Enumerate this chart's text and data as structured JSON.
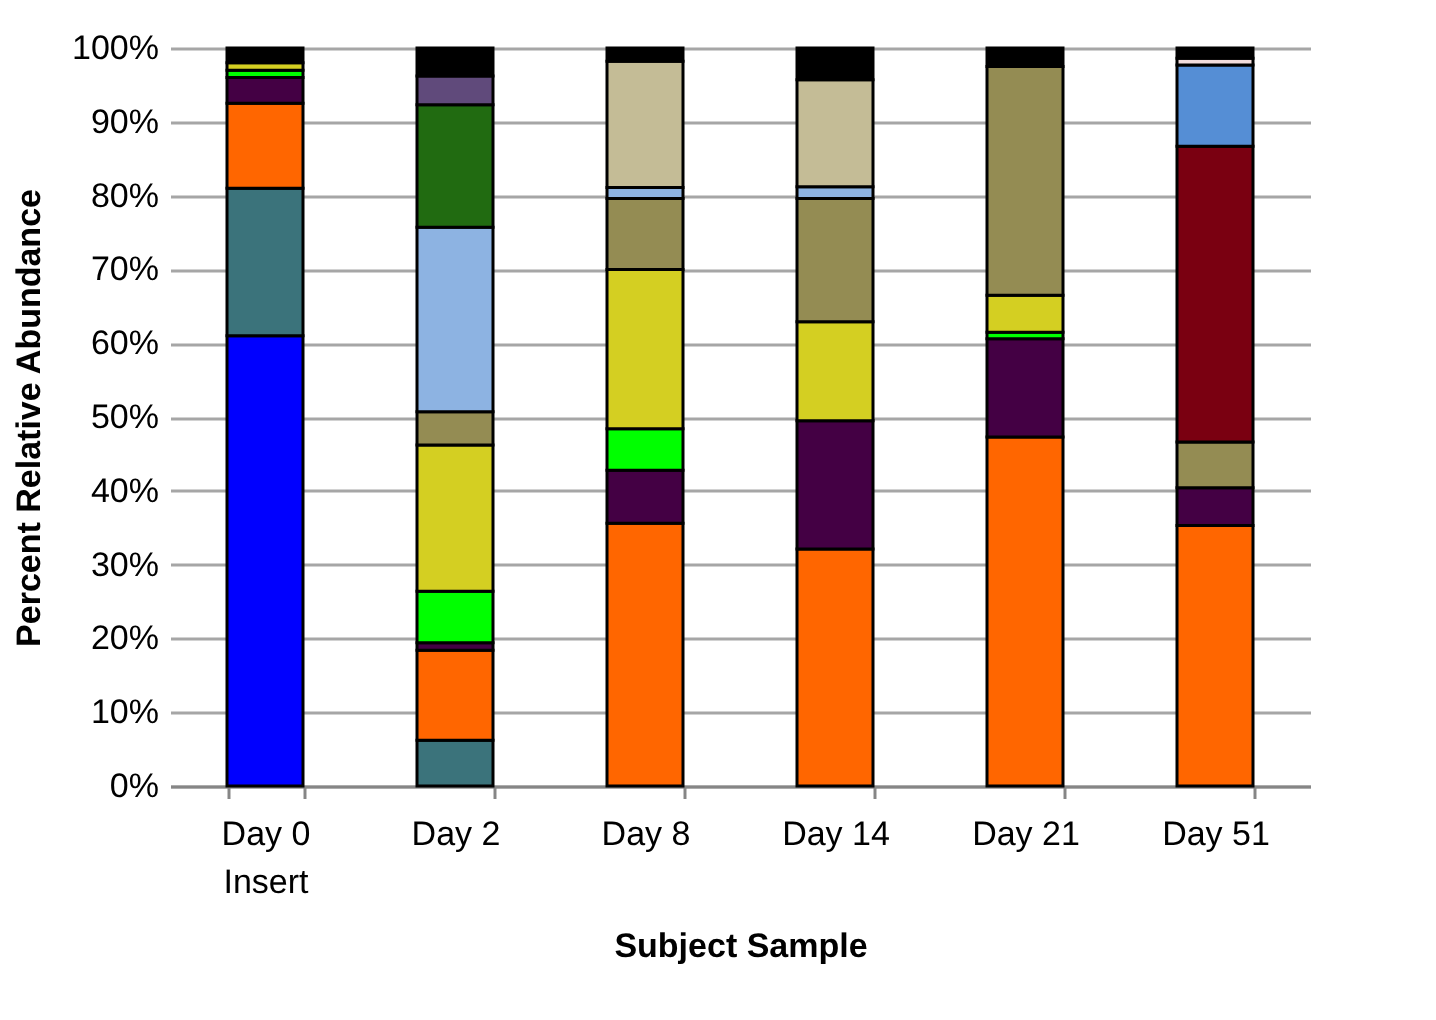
{
  "chart_data": {
    "type": "bar",
    "stacked": true,
    "xlabel": "Subject Sample",
    "ylabel": "Percent Relative Abundance",
    "categories": [
      "Day 0\nInsert",
      "Day 2",
      "Day 8",
      "Day 14",
      "Day 21",
      "Day 51"
    ],
    "series": [
      {
        "color": "#0000ff",
        "values": [
          61,
          null,
          null,
          null,
          null,
          null
        ]
      },
      {
        "color": "#3b737b",
        "values": [
          20,
          6.2,
          null,
          null,
          null,
          null
        ]
      },
      {
        "color": "#ff6600",
        "values": [
          11.5,
          12.2,
          35.6,
          32.1,
          47.3,
          35.3
        ]
      },
      {
        "color": "#440044",
        "values": [
          3.5,
          1,
          7.2,
          17.4,
          13.3,
          5.1
        ]
      },
      {
        "color": "#00ff00",
        "values": [
          1,
          7,
          5.6,
          null,
          0.9,
          null
        ]
      },
      {
        "color": "#d4cf22",
        "values": [
          1,
          19.8,
          21.6,
          13.4,
          5,
          null
        ]
      },
      {
        "color": "#948c53",
        "values": [
          null,
          4.5,
          9.6,
          16.7,
          31,
          6.2
        ]
      },
      {
        "color": "#8db3e2",
        "values": [
          null,
          25,
          1.5,
          1.6,
          null,
          null
        ]
      },
      {
        "color": "#216b11",
        "values": [
          null,
          16.6,
          null,
          null,
          null,
          null
        ]
      },
      {
        "color": "#604a7b",
        "values": [
          null,
          3.9,
          null,
          null,
          null,
          null
        ]
      },
      {
        "color": "#c4bc96",
        "values": [
          null,
          null,
          17.1,
          14.5,
          null,
          null
        ]
      },
      {
        "color": "#7a0011",
        "values": [
          null,
          null,
          null,
          null,
          null,
          40.1
        ]
      },
      {
        "color": "#558ed5",
        "values": [
          null,
          null,
          null,
          null,
          null,
          11
        ]
      },
      {
        "color": "#f2dcdb",
        "values": [
          null,
          null,
          null,
          null,
          null,
          0.9
        ]
      },
      {
        "color": "#000000",
        "values": [
          2,
          3.8,
          1.8,
          4.3,
          2.5,
          1.4
        ]
      }
    ],
    "ylim": [
      0,
      100
    ],
    "yticks": [
      {
        "value": 0,
        "label": "0%"
      },
      {
        "value": 10,
        "label": "10%"
      },
      {
        "value": 20,
        "label": "20%"
      },
      {
        "value": 30,
        "label": "30%"
      },
      {
        "value": 40,
        "label": "40%"
      },
      {
        "value": 50,
        "label": "50%"
      },
      {
        "value": 60,
        "label": "60%"
      },
      {
        "value": 70,
        "label": "70%"
      },
      {
        "value": 80,
        "label": "80%"
      },
      {
        "value": 90,
        "label": "90%"
      },
      {
        "value": 100,
        "label": "100%"
      }
    ],
    "grid": "y",
    "legend": false
  }
}
